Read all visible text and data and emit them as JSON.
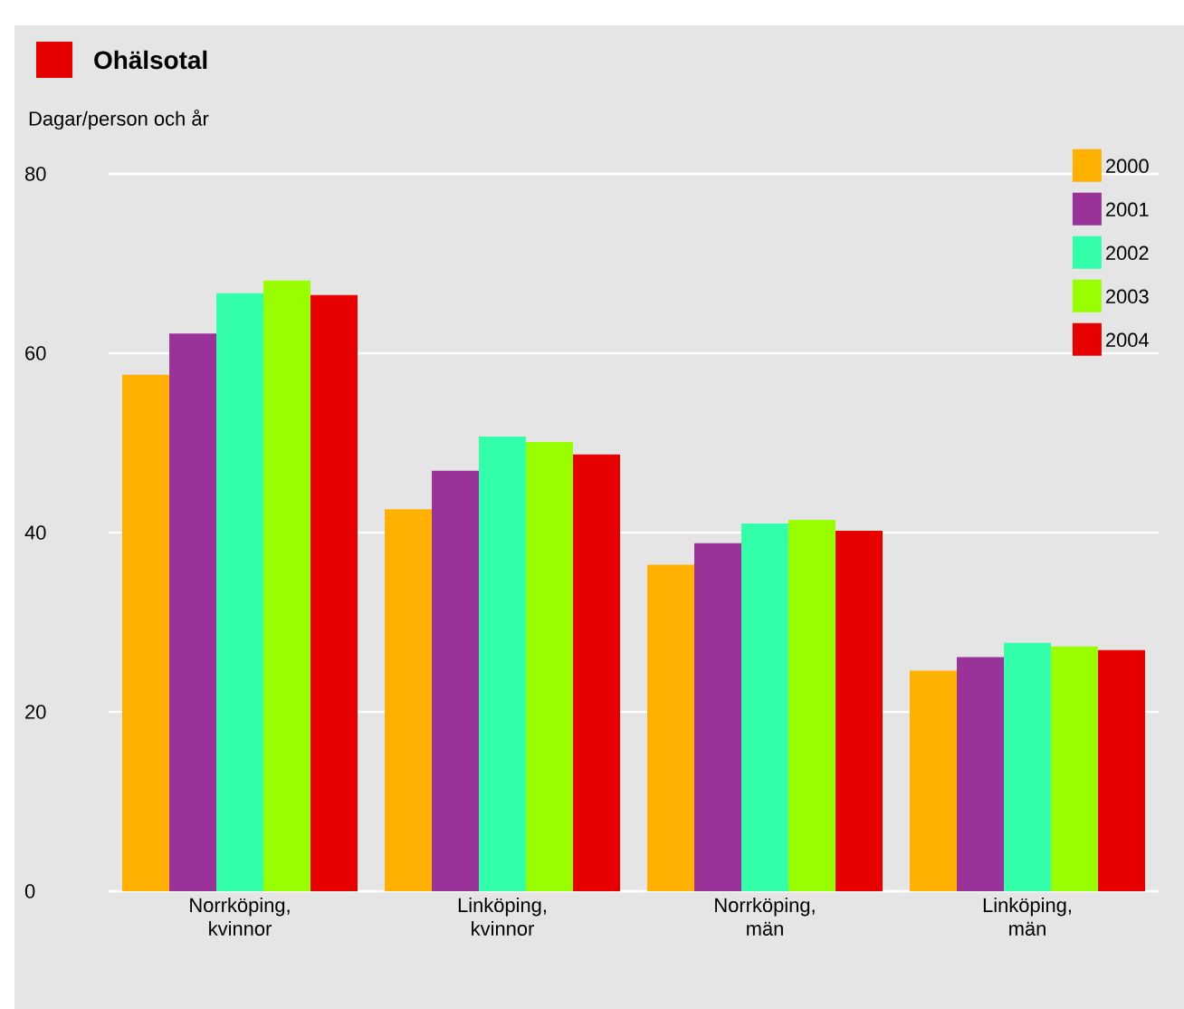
{
  "chart_data": {
    "type": "bar",
    "title": "Ohälsotal",
    "ylabel": "Dagar/person och år",
    "categories": [
      "Norrköping, kvinnor",
      "Linköping, kvinnor",
      "Norrköping, män",
      "Linköping, män"
    ],
    "series": [
      {
        "name": "2000",
        "color": "#ffb000",
        "values": [
          57.6,
          42.6,
          36.4,
          24.6
        ]
      },
      {
        "name": "2001",
        "color": "#993399",
        "values": [
          62.2,
          46.9,
          38.8,
          26.1
        ]
      },
      {
        "name": "2002",
        "color": "#33ffaa",
        "values": [
          66.7,
          50.7,
          41.0,
          27.7
        ]
      },
      {
        "name": "2003",
        "color": "#99ff00",
        "values": [
          68.1,
          50.1,
          41.4,
          27.3
        ]
      },
      {
        "name": "2004",
        "color": "#e60000",
        "values": [
          66.5,
          48.7,
          40.2,
          26.9
        ]
      }
    ],
    "ylim": [
      0,
      80
    ],
    "yticks": [
      0,
      20,
      40,
      60,
      80
    ],
    "grid": "y",
    "legend": "top right"
  }
}
